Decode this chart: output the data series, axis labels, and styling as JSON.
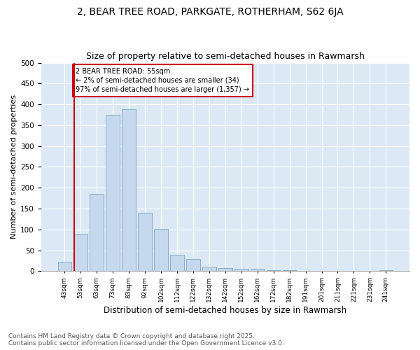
{
  "title": "2, BEAR TREE ROAD, PARKGATE, ROTHERHAM, S62 6JA",
  "subtitle": "Size of property relative to semi-detached houses in Rawmarsh",
  "xlabel": "Distribution of semi-detached houses by size in Rawmarsh",
  "ylabel": "Number of semi-detached properties",
  "categories": [
    "43sqm",
    "53sqm",
    "63sqm",
    "73sqm",
    "83sqm",
    "92sqm",
    "102sqm",
    "112sqm",
    "122sqm",
    "132sqm",
    "142sqm",
    "152sqm",
    "162sqm",
    "172sqm",
    "182sqm",
    "191sqm",
    "201sqm",
    "211sqm",
    "221sqm",
    "231sqm",
    "241sqm"
  ],
  "values": [
    22,
    90,
    185,
    375,
    388,
    140,
    101,
    40,
    30,
    11,
    8,
    6,
    5,
    3,
    2,
    1,
    0,
    1,
    0,
    1,
    3
  ],
  "bar_color": "#c5d8ed",
  "bar_edge_color": "#8aafc8",
  "highlight_index": 1,
  "highlight_color": "#cc0000",
  "annotation_text": "2 BEAR TREE ROAD: 55sqm\n← 2% of semi-detached houses are smaller (34)\n97% of semi-detached houses are larger (1,357) →",
  "annotation_box_color": "#ffffff",
  "annotation_box_edge": "#cc0000",
  "ylim": [
    0,
    500
  ],
  "yticks": [
    0,
    50,
    100,
    150,
    200,
    250,
    300,
    350,
    400,
    450,
    500
  ],
  "plot_background": "#dce9f5",
  "footer": "Contains HM Land Registry data © Crown copyright and database right 2025.\nContains public sector information licensed under the Open Government Licence v3.0.",
  "title_fontsize": 10,
  "subtitle_fontsize": 9,
  "xlabel_fontsize": 8.5,
  "ylabel_fontsize": 8,
  "footer_fontsize": 6.5
}
